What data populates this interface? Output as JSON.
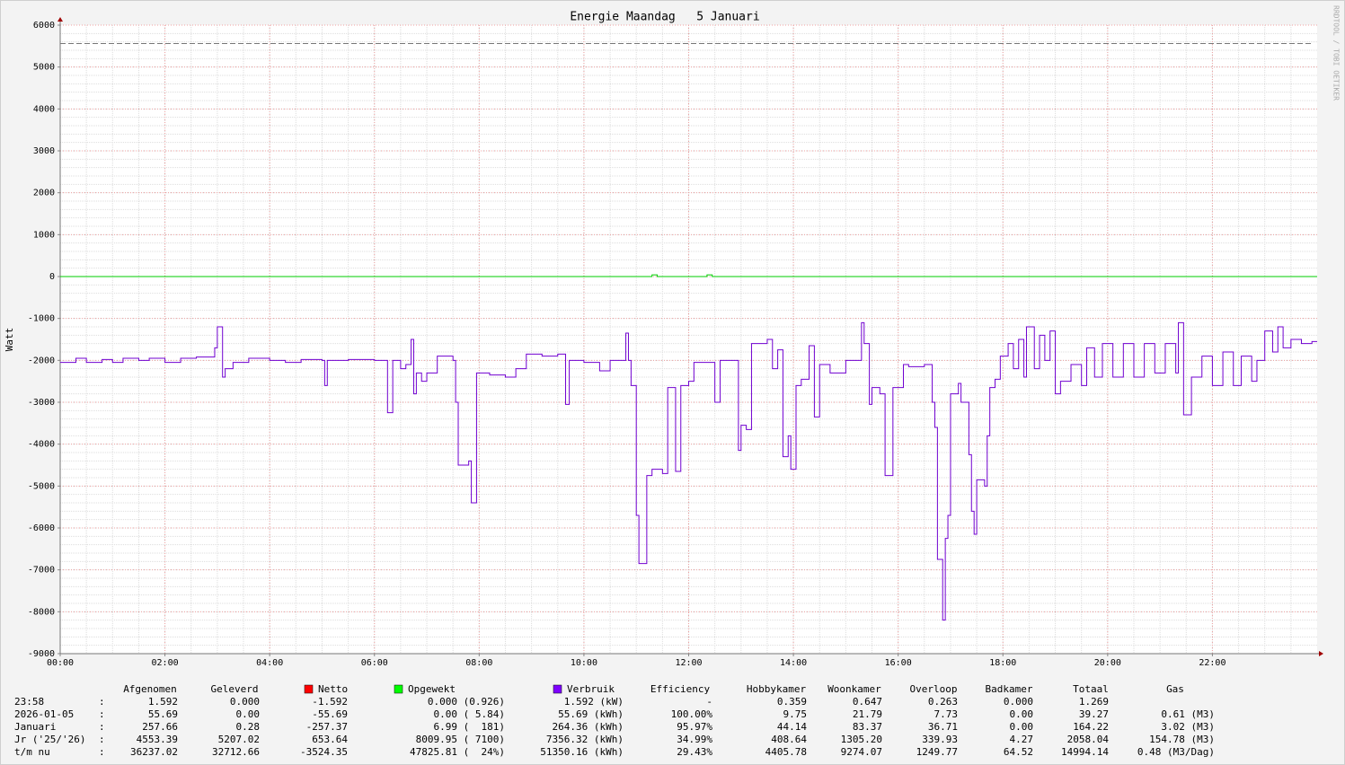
{
  "chart_data": {
    "type": "line",
    "title": "Energie Maandag   5 Januari",
    "y_label": "Watt",
    "watermark": "RRDTOOL / TOBI OETIKER",
    "xlim": [
      0,
      24
    ],
    "ylim": [
      -9000,
      6000
    ],
    "xticks": [
      {
        "value": 0,
        "label": "00:00"
      },
      {
        "value": 2,
        "label": "02:00"
      },
      {
        "value": 4,
        "label": "04:00"
      },
      {
        "value": 6,
        "label": "06:00"
      },
      {
        "value": 8,
        "label": "08:00"
      },
      {
        "value": 10,
        "label": "10:00"
      },
      {
        "value": 12,
        "label": "12:00"
      },
      {
        "value": 14,
        "label": "14:00"
      },
      {
        "value": 16,
        "label": "16:00"
      },
      {
        "value": 18,
        "label": "18:00"
      },
      {
        "value": 20,
        "label": "20:00"
      },
      {
        "value": 22,
        "label": "22:00"
      }
    ],
    "yticks": [
      6000,
      5000,
      4000,
      3000,
      2000,
      1000,
      0,
      -1000,
      -2000,
      -3000,
      -4000,
      -5000,
      -6000,
      -7000,
      -8000,
      -9000
    ],
    "grid": true,
    "step": true,
    "max_line": 5560,
    "max_line_color": "#777777",
    "series": [
      {
        "name": "Opgewekt",
        "color": "#00cc00",
        "x": [
          0,
          11.25,
          11.3,
          11.4,
          12.3,
          12.35,
          12.45,
          24
        ],
        "values": [
          0,
          0,
          40,
          0,
          0,
          40,
          0,
          0
        ]
      },
      {
        "name": "Verbruik",
        "color": "#7000d0",
        "x": [
          0,
          0.3,
          0.5,
          0.8,
          1.0,
          1.2,
          1.5,
          1.7,
          2.0,
          2.3,
          2.6,
          2.95,
          3.0,
          3.1,
          3.15,
          3.3,
          3.6,
          4.0,
          4.3,
          4.6,
          5.0,
          5.05,
          5.1,
          5.5,
          6.0,
          6.25,
          6.35,
          6.5,
          6.6,
          6.7,
          6.75,
          6.8,
          6.9,
          7.0,
          7.2,
          7.5,
          7.55,
          7.6,
          7.8,
          7.85,
          7.95,
          8.2,
          8.5,
          8.7,
          8.9,
          9.2,
          9.5,
          9.65,
          9.72,
          10.0,
          10.3,
          10.5,
          10.8,
          10.85,
          10.9,
          11.0,
          11.05,
          11.2,
          11.3,
          11.5,
          11.6,
          11.75,
          11.85,
          12.0,
          12.1,
          12.5,
          12.6,
          12.95,
          13.0,
          13.1,
          13.2,
          13.5,
          13.6,
          13.7,
          13.8,
          13.9,
          13.95,
          14.05,
          14.15,
          14.3,
          14.4,
          14.5,
          14.7,
          15.0,
          15.3,
          15.35,
          15.45,
          15.5,
          15.65,
          15.75,
          15.9,
          16.1,
          16.2,
          16.5,
          16.65,
          16.7,
          16.75,
          16.85,
          16.9,
          16.95,
          17.0,
          17.15,
          17.2,
          17.35,
          17.4,
          17.45,
          17.5,
          17.65,
          17.7,
          17.75,
          17.85,
          17.95,
          18.1,
          18.2,
          18.3,
          18.4,
          18.45,
          18.6,
          18.7,
          18.8,
          18.9,
          19.0,
          19.1,
          19.3,
          19.5,
          19.6,
          19.75,
          19.9,
          20.1,
          20.3,
          20.5,
          20.7,
          20.9,
          21.1,
          21.3,
          21.35,
          21.45,
          21.6,
          21.8,
          22.0,
          22.2,
          22.4,
          22.55,
          22.75,
          22.85,
          23.0,
          23.15,
          23.25,
          23.35,
          23.5,
          23.7,
          23.9,
          24.0
        ],
        "values": [
          -2050,
          -1950,
          -2050,
          -1980,
          -2050,
          -1950,
          -2000,
          -1950,
          -2050,
          -1950,
          -1920,
          -1700,
          -1200,
          -2400,
          -2200,
          -2050,
          -1950,
          -2000,
          -2050,
          -1980,
          -2000,
          -2600,
          -2000,
          -1980,
          -2000,
          -3250,
          -2000,
          -2200,
          -2100,
          -1500,
          -2800,
          -2300,
          -2500,
          -2300,
          -1900,
          -2000,
          -3000,
          -4500,
          -4400,
          -5400,
          -2300,
          -2350,
          -2400,
          -2200,
          -1850,
          -1900,
          -1850,
          -3050,
          -2000,
          -2050,
          -2250,
          -2000,
          -1350,
          -2000,
          -2600,
          -5700,
          -6850,
          -4750,
          -4600,
          -4700,
          -2650,
          -4650,
          -2600,
          -2500,
          -2050,
          -3000,
          -2000,
          -4150,
          -3550,
          -3650,
          -1600,
          -1500,
          -2200,
          -1750,
          -4300,
          -3800,
          -4600,
          -2600,
          -2450,
          -1650,
          -3350,
          -2100,
          -2300,
          -2000,
          -1100,
          -1600,
          -3050,
          -2650,
          -2800,
          -4750,
          -2650,
          -2100,
          -2150,
          -2100,
          -3000,
          -3600,
          -6750,
          -8200,
          -6250,
          -5700,
          -2800,
          -2550,
          -3000,
          -4250,
          -5600,
          -6150,
          -4850,
          -5000,
          -3800,
          -2650,
          -2450,
          -1900,
          -1600,
          -2200,
          -1500,
          -2400,
          -1200,
          -2200,
          -1400,
          -2000,
          -1300,
          -2800,
          -2500,
          -2100,
          -2600,
          -1700,
          -2400,
          -1600,
          -2400,
          -1600,
          -2400,
          -1600,
          -2300,
          -1600,
          -2300,
          -1100,
          -3300,
          -2400,
          -1900,
          -2600,
          -1800,
          -2600,
          -1900,
          -2500,
          -2000,
          -1300,
          -1800,
          -1200,
          -1700,
          -1500,
          -1600,
          -1550,
          -1550
        ]
      }
    ]
  },
  "table": {
    "header": [
      "Afgenomen",
      "Geleverd",
      "Netto",
      "Opgewekt",
      "Verbruik",
      "Efficiency",
      "Hobbykamer",
      "Woonkamer",
      "Overloop",
      "Badkamer",
      "Totaal",
      "Gas"
    ],
    "rows": [
      [
        "23:58",
        ":",
        "1.592",
        "0.000",
        "-1.592",
        "0.000 (0.926)",
        "1.592 (kW)",
        "-",
        "0.359",
        "0.647",
        "0.263",
        "0.000",
        "1.269"
      ],
      [
        "2026-01-05",
        ":",
        "55.69",
        "0.00",
        "-55.69",
        "0.00 ( 5.84)",
        "55.69 (kWh)",
        "100.00%",
        "9.75",
        "21.79",
        "7.73",
        "0.00",
        "39.27",
        "0.61 (M3)"
      ],
      [
        "Januari",
        ":",
        "257.66",
        "0.28",
        "-257.37",
        "6.99 (  181)",
        "264.36 (kWh)",
        "95.97%",
        "44.14",
        "83.37",
        "36.71",
        "0.00",
        "164.22",
        "3.02 (M3)"
      ],
      [
        "Jr ('25/'26)",
        ":",
        "4553.39",
        "5207.02",
        "653.64",
        "8009.95 ( 7100)",
        "7356.32 (kWh)",
        "34.99%",
        "408.64",
        "1305.20",
        "339.93",
        "4.27",
        "2058.04",
        "154.78 (M3)"
      ],
      [
        "t/m nu",
        ":",
        "36237.02",
        "32712.66",
        "-3524.35",
        "47825.81 (  24%)",
        "51350.16 (kWh)",
        "29.43%",
        "4405.78",
        "9274.07",
        "1249.77",
        "64.52",
        "14994.14",
        "0.48 (M3/Dag)"
      ]
    ]
  }
}
